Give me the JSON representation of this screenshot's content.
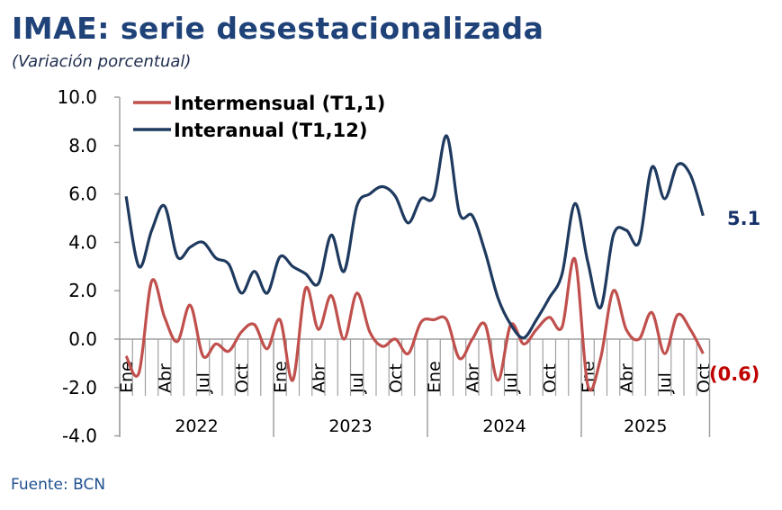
{
  "title": "IMAE: serie desestacionalizada",
  "subtitle": "(Variación porcentual)",
  "source": "Fuente: BCN",
  "chart_data": {
    "type": "line",
    "title": "IMAE: serie desestacionalizada",
    "ylabel": "Variación porcentual",
    "ylim": [
      -4,
      10
    ],
    "yticks": [
      "10.0",
      "8.0",
      "6.0",
      "4.0",
      "2.0",
      "0.0",
      "-2.0",
      "-4.0"
    ],
    "ytick_values": [
      10,
      8,
      6,
      4,
      2,
      0,
      -2,
      -4
    ],
    "years": [
      "2022",
      "2023",
      "2024",
      "2025"
    ],
    "months_per_year": [
      12,
      12,
      12,
      10
    ],
    "month_labels": [
      "Ene",
      "Abr",
      "Jul",
      "Oct"
    ],
    "legend_position": "top-left",
    "colors": {
      "intermensual": "#c0504d",
      "interanual": "#1f3a5f",
      "last_inter": "#17326a",
      "last_mensual": "#c00000"
    },
    "series": [
      {
        "name": "Intermensual (T1,1)",
        "last_label": "(0.6)",
        "values": [
          -0.7,
          -1.4,
          2.4,
          0.9,
          -0.1,
          1.4,
          -0.7,
          -0.2,
          -0.5,
          0.3,
          0.6,
          -0.4,
          0.8,
          -1.7,
          2.1,
          0.4,
          1.8,
          0.0,
          1.9,
          0.3,
          -0.3,
          0.0,
          -0.6,
          0.7,
          0.8,
          0.8,
          -0.8,
          0.0,
          0.6,
          -1.7,
          0.6,
          -0.2,
          0.4,
          0.9,
          0.5,
          3.3,
          -1.9,
          -0.8,
          2.0,
          0.4,
          0.0,
          1.1,
          -0.6,
          1.0,
          0.4,
          -0.6
        ]
      },
      {
        "name": "Interanual (T1,12)",
        "last_label": "5.1",
        "values": [
          5.9,
          3.0,
          4.5,
          5.5,
          3.4,
          3.8,
          4.0,
          3.35,
          3.1,
          1.9,
          2.8,
          1.9,
          3.4,
          3.0,
          2.7,
          2.3,
          4.3,
          2.8,
          5.5,
          6.0,
          6.3,
          5.9,
          4.8,
          5.8,
          5.9,
          8.4,
          5.2,
          5.1,
          3.6,
          1.7,
          0.6,
          0.05,
          0.8,
          1.7,
          2.7,
          5.6,
          3.2,
          1.3,
          4.3,
          4.5,
          4.0,
          7.1,
          5.8,
          7.2,
          6.8,
          5.1
        ]
      }
    ]
  }
}
